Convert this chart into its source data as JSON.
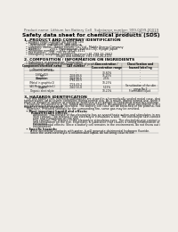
{
  "bg_color": "#f0ede8",
  "title": "Safety data sheet for chemical products (SDS)",
  "header_left": "Product name: Lithium Ion Battery Cell",
  "header_right_line1": "Substance number: 999-0499-00019",
  "header_right_line2": "Established / Revision: Dec.7.2016",
  "section1_title": "1. PRODUCT AND COMPANY IDENTIFICATION",
  "s1_lines": [
    "  • Product name: Lithium Ion Battery Cell",
    "  • Product code: Cylindrical type cell",
    "       INR18650J, INR18650L, INR18650A",
    "  • Company name:   Sanyo Electric Co., Ltd., Mobile Energy Company",
    "  • Address:          2001, Kamionkuran, Sumoto-City, Hyogo, Japan",
    "  • Telephone number:    +81-799-26-4111",
    "  • Fax number:   +81-799-26-4129",
    "  • Emergency telephone number (daytime)+81-799-26-2662",
    "                                    (Night and holidays) +81-799-26-2121"
  ],
  "section2_title": "2. COMPOSITION / INFORMATION ON INGREDIENTS",
  "s2_intro": "  • Substance or preparation: Preparation",
  "s2_sub": "  • Information about the chemical nature of product:",
  "table_headers": [
    "Component/chemical name",
    "CAS number",
    "Concentration /\nConcentration range",
    "Classification and\nhazard labeling"
  ],
  "table_col1": [
    "Several names",
    "Lithium nickel oxide\n(LiNiCoO2)",
    "Iron",
    "Aluminum",
    "Graphite\n(Metal in graphite1)\n(All-Mo in graphite1)",
    "Copper",
    "Organic electrolyte"
  ],
  "table_col2": [
    "-",
    "-",
    "7439-89-6",
    "7429-90-5",
    "7782-42-5\n7726-43-2",
    "7440-50-8",
    "-"
  ],
  "table_col3": [
    "",
    "30-60%",
    "15-25%",
    "2-5%",
    "10-25%",
    "5-15%",
    "10-20%"
  ],
  "table_col4": [
    "-",
    "-",
    "-",
    "-",
    "-",
    "Sensitization of the skin\ngroup No.2",
    "Flammable liquid"
  ],
  "section3_title": "3. HAZARDS IDENTIFICATION",
  "s3_lines": [
    "   For this battery cell, chemical substances are stored in a hermetically sealed metal case, designed to withstand",
    "temperatures up to severe conditions during normal use. As a result, during normal use, there is no",
    "physical danger of ignition or explosion and there is no danger of hazardous materials leakage.",
    "   However, if exposed to a fire, added mechanical shocks, decomposed, when electrolyte is in dry mass use,",
    "the gas release vent can be operated. The battery cell case will be breached of fire plasma, hazardous",
    "materials may be released.",
    "   Moreover, if heated strongly by the surrounding fire, some gas may be emitted."
  ],
  "s3_bullet1": "  • Most important hazard and effects:",
  "s3_h1": "       Human health effects:",
  "s3_h1_lines": [
    "          Inhalation: The release of the electrolyte has an anaesthesia action and stimulates in respiratory tract.",
    "          Skin contact: The release of the electrolyte stimulates a skin. The electrolyte skin contact causes a",
    "          sore and stimulation on the skin.",
    "          Eye contact: The release of the electrolyte stimulates eyes. The electrolyte eye contact causes a sore",
    "          and stimulation on the eye. Especially, a substance that causes a strong inflammation of the eye is",
    "          contained.",
    "          Environmental effects: Since a battery cell remains in the environment, do not throw out it into the",
    "          environment."
  ],
  "s3_bullet2": "  • Specific hazards:",
  "s3_s_lines": [
    "       If the electrolyte contacts with water, it will generate detrimental hydrogen fluoride.",
    "       Since the used electrolyte is inflammable liquid, do not bring close to fire."
  ]
}
